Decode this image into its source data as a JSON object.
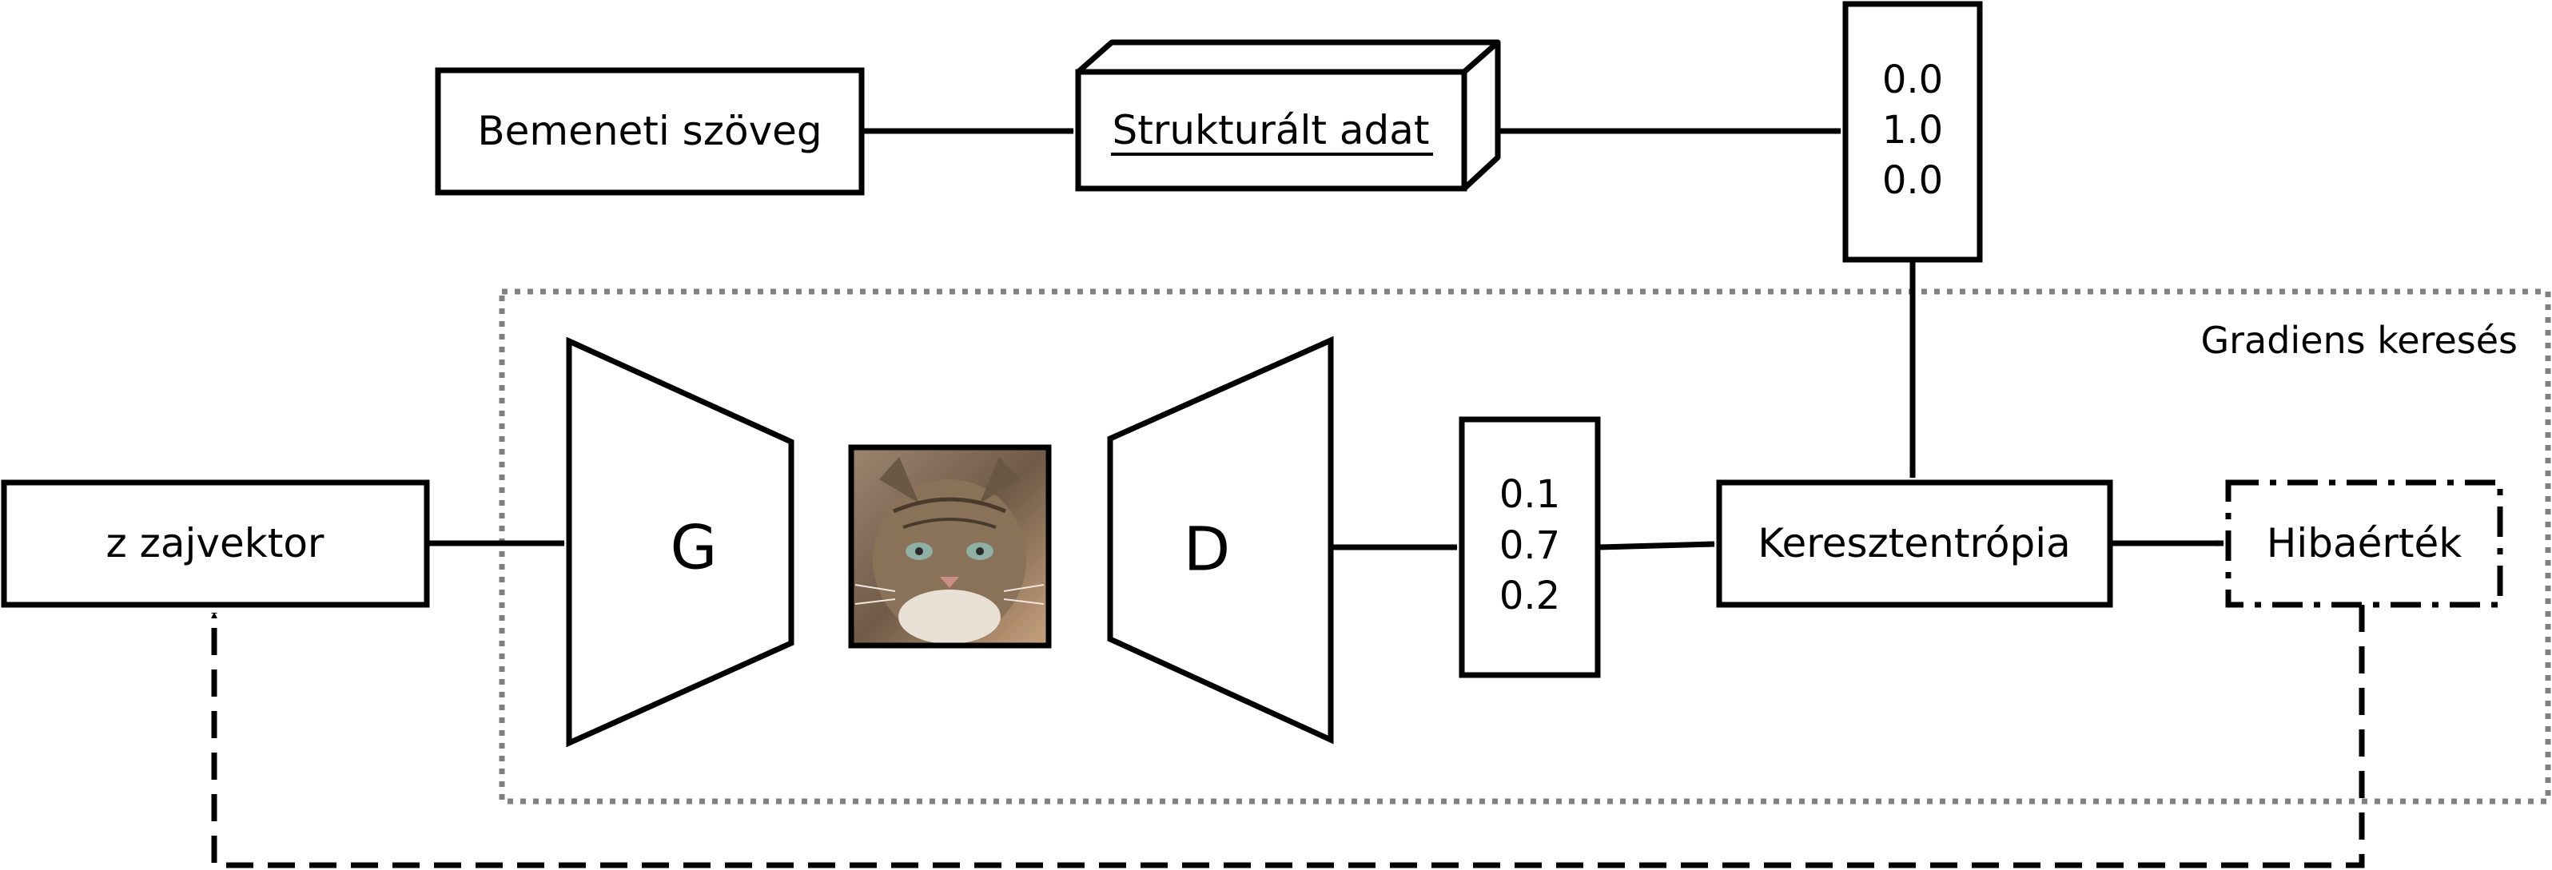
{
  "nodes": {
    "input_text": {
      "label": "Bemeneti szöveg"
    },
    "structured_data": {
      "label": "Strukturált adat"
    },
    "target_vector": {
      "values": [
        "0.0",
        "1.0",
        "0.0"
      ]
    },
    "noise_vector": {
      "label": "z zajvektor"
    },
    "generator": {
      "label": "G"
    },
    "cat_image": {
      "description": "generált macskakép"
    },
    "discriminator": {
      "label": "D"
    },
    "output_vector": {
      "values": [
        "0.1",
        "0.7",
        "0.2"
      ]
    },
    "cross_entropy": {
      "label": "Keresztentrópia"
    },
    "error_value": {
      "label": "Hibaérték"
    }
  },
  "regions": {
    "gradient_search": {
      "label": "Gradiens keresés"
    }
  },
  "colors": {
    "stroke": "#000000",
    "region_border": "#808080",
    "background": "#ffffff"
  }
}
